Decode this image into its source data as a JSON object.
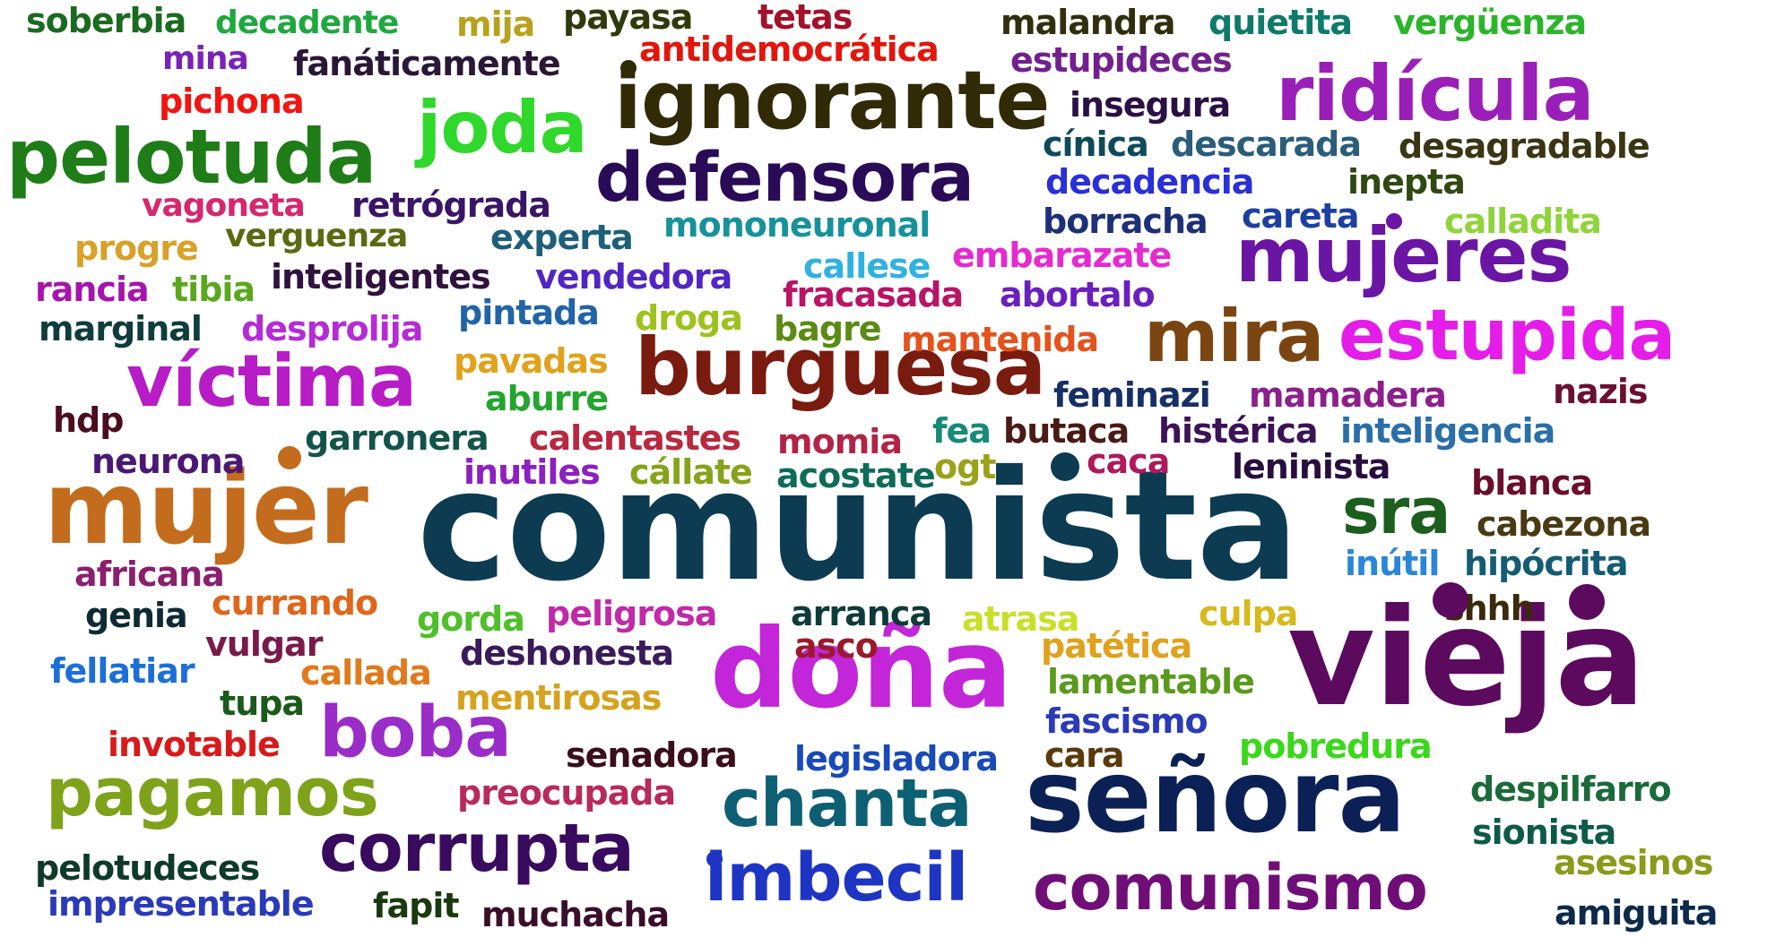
{
  "words": [
    {
      "text": "comunista",
      "color": "#0c3b52"
    },
    {
      "text": "vieja",
      "color": "#5b0a5e"
    },
    {
      "text": "mujer",
      "color": "#c46c1d"
    },
    {
      "text": "doña",
      "color": "#c326d8"
    },
    {
      "text": "señora",
      "color": "#0b2155"
    },
    {
      "text": "burguesa",
      "color": "#7a1b0f"
    },
    {
      "text": "ignorante",
      "color": "#302a06"
    },
    {
      "text": "pelotuda",
      "color": "#1f7d18"
    },
    {
      "text": "joda",
      "color": "#2fd82b"
    },
    {
      "text": "defensora",
      "color": "#2a0b57"
    },
    {
      "text": "ridícula",
      "color": "#9a1fb8"
    },
    {
      "text": "mujeres",
      "color": "#6a15a4"
    },
    {
      "text": "mira",
      "color": "#7b4512"
    },
    {
      "text": "estupida",
      "color": "#e41de8"
    },
    {
      "text": "víctima",
      "color": "#b71cc6"
    },
    {
      "text": "boba",
      "color": "#9a2cc7"
    },
    {
      "text": "pagamos",
      "color": "#7ea31b"
    },
    {
      "text": "corrupta",
      "color": "#380b5e"
    },
    {
      "text": "chanta",
      "color": "#0d5f73"
    },
    {
      "text": "imbecil",
      "color": "#1e35c4"
    },
    {
      "text": "comunismo",
      "color": "#700e78"
    },
    {
      "text": "sra",
      "color": "#1b5e1d"
    },
    {
      "text": "soberbia",
      "color": "#1a6b1f"
    },
    {
      "text": "decadente",
      "color": "#1ea83e"
    },
    {
      "text": "mija",
      "color": "#b8a11d"
    },
    {
      "text": "payasa",
      "color": "#2f3a0c"
    },
    {
      "text": "tetas",
      "color": "#a3112a"
    },
    {
      "text": "malandra",
      "color": "#2f2f0d"
    },
    {
      "text": "quietita",
      "color": "#0f7a6b"
    },
    {
      "text": "vergüenza",
      "color": "#2bb52b"
    },
    {
      "text": "mina",
      "color": "#7a22b8"
    },
    {
      "text": "fanáticamente",
      "color": "#2a1736"
    },
    {
      "text": "antidemocrática",
      "color": "#e2160c"
    },
    {
      "text": "estupideces",
      "color": "#73208f"
    },
    {
      "text": "pichona",
      "color": "#f2140f"
    },
    {
      "text": "insegura",
      "color": "#2a1044"
    },
    {
      "text": "cínica",
      "color": "#0f4a5a"
    },
    {
      "text": "descarada",
      "color": "#2a5d7a"
    },
    {
      "text": "desagradable",
      "color": "#3a3512"
    },
    {
      "text": "decadencia",
      "color": "#2a2fd8"
    },
    {
      "text": "inepta",
      "color": "#2e4a12"
    },
    {
      "text": "vagoneta",
      "color": "#d6276f"
    },
    {
      "text": "retrógrada",
      "color": "#3a1466"
    },
    {
      "text": "borracha",
      "color": "#1c2f78"
    },
    {
      "text": "careta",
      "color": "#1d3fa0"
    },
    {
      "text": "calladita",
      "color": "#8fd43a"
    },
    {
      "text": "progre",
      "color": "#d9a129"
    },
    {
      "text": "verguenza",
      "color": "#5b6a12"
    },
    {
      "text": "experta",
      "color": "#1d5f7a"
    },
    {
      "text": "mononeuronal",
      "color": "#17929a"
    },
    {
      "text": "callese",
      "color": "#2fb2e0"
    },
    {
      "text": "embarazate",
      "color": "#e52ad1"
    },
    {
      "text": "rancia",
      "color": "#a515ad"
    },
    {
      "text": "tibia",
      "color": "#5ba81f"
    },
    {
      "text": "inteligentes",
      "color": "#30113f"
    },
    {
      "text": "vendedora",
      "color": "#5126c4"
    },
    {
      "text": "fracasada",
      "color": "#b81566"
    },
    {
      "text": "abortalo",
      "color": "#6a1fbf"
    },
    {
      "text": "marginal",
      "color": "#0e3d3b"
    },
    {
      "text": "desprolija",
      "color": "#b52cd6"
    },
    {
      "text": "pintada",
      "color": "#2264a8"
    },
    {
      "text": "droga",
      "color": "#9ec21c"
    },
    {
      "text": "bagre",
      "color": "#5c8a14"
    },
    {
      "text": "mantenida",
      "color": "#e5521b"
    },
    {
      "text": "pavadas",
      "color": "#e0a21d"
    },
    {
      "text": "aburre",
      "color": "#23a52f"
    },
    {
      "text": "feminazi",
      "color": "#162f66"
    },
    {
      "text": "mamadera",
      "color": "#8d1f8c"
    },
    {
      "text": "nazis",
      "color": "#6a1030"
    },
    {
      "text": "hdp",
      "color": "#4a0e1e"
    },
    {
      "text": "garronera",
      "color": "#13544a"
    },
    {
      "text": "calentastes",
      "color": "#b8283e"
    },
    {
      "text": "momia",
      "color": "#b32346"
    },
    {
      "text": "fea",
      "color": "#178a78"
    },
    {
      "text": "butaca",
      "color": "#4a1a14"
    },
    {
      "text": "histérica",
      "color": "#3b1356"
    },
    {
      "text": "inteligencia",
      "color": "#2a6fa8"
    },
    {
      "text": "neurona",
      "color": "#4a1874"
    },
    {
      "text": "inutiles",
      "color": "#8c20c0"
    },
    {
      "text": "cállate",
      "color": "#86a31a"
    },
    {
      "text": "acostate",
      "color": "#0f6b5a"
    },
    {
      "text": "ogt",
      "color": "#9aa21a"
    },
    {
      "text": "caca",
      "color": "#b0185c"
    },
    {
      "text": "leninista",
      "color": "#2a0d3f"
    },
    {
      "text": "blanca",
      "color": "#6a0e2b"
    },
    {
      "text": "cabezona",
      "color": "#4a3a12"
    },
    {
      "text": "africana",
      "color": "#8a1f6e"
    },
    {
      "text": "inútil",
      "color": "#2a87d8"
    },
    {
      "text": "hipócrita",
      "color": "#145c73"
    },
    {
      "text": "genia",
      "color": "#0e2a33"
    },
    {
      "text": "currando",
      "color": "#e0661c"
    },
    {
      "text": "gorda",
      "color": "#4fbf2a"
    },
    {
      "text": "peligrosa",
      "color": "#c02aa8"
    },
    {
      "text": "arranca",
      "color": "#0f3a3a"
    },
    {
      "text": "atrasa",
      "color": "#c9e02a"
    },
    {
      "text": "culpa",
      "color": "#d6b91d"
    },
    {
      "text": "shhh",
      "color": "#3a2a0a"
    },
    {
      "text": "vulgar",
      "color": "#7a1a4a"
    },
    {
      "text": "deshonesta",
      "color": "#3a1a5a"
    },
    {
      "text": "asco",
      "color": "#9a1a2a"
    },
    {
      "text": "patética",
      "color": "#e0a21d"
    },
    {
      "text": "fellatiar",
      "color": "#1d6fd8"
    },
    {
      "text": "callada",
      "color": "#e07a1d"
    },
    {
      "text": "lamentable",
      "color": "#5a9a1d"
    },
    {
      "text": "tupa",
      "color": "#1a5a1a"
    },
    {
      "text": "mentirosas",
      "color": "#d6a21d"
    },
    {
      "text": "fascismo",
      "color": "#2a3ab8"
    },
    {
      "text": "invotable",
      "color": "#d81a1a"
    },
    {
      "text": "senadora",
      "color": "#3a0e1a"
    },
    {
      "text": "legisladora",
      "color": "#1a4ab8"
    },
    {
      "text": "cara",
      "color": "#5a3a0a"
    },
    {
      "text": "pobredura",
      "color": "#3ad81a"
    },
    {
      "text": "despilfarro",
      "color": "#1a6b3a"
    },
    {
      "text": "preocupada",
      "color": "#b82a5a"
    },
    {
      "text": "sionista",
      "color": "#0e5a4a"
    },
    {
      "text": "asesinos",
      "color": "#8a9a1a"
    },
    {
      "text": "pelotudeces",
      "color": "#0e3a2a"
    },
    {
      "text": "impresentable",
      "color": "#2a3ab8"
    },
    {
      "text": "fapit",
      "color": "#1a3a0e"
    },
    {
      "text": "muchacha",
      "color": "#3a0e2a"
    },
    {
      "text": "amiguita",
      "color": "#0e2a4a"
    }
  ],
  "dots": [
    {
      "color": "#302a06"
    },
    {
      "color": "#c46c1d"
    },
    {
      "color": "#0c3b52"
    },
    {
      "color": "#6a15a4"
    },
    {
      "color": "#5b0a5e"
    },
    {
      "color": "#5b0a5e"
    },
    {
      "color": "#1e35c4"
    }
  ]
}
